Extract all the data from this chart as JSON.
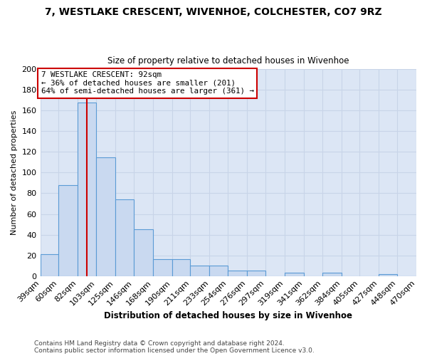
{
  "title": "7, WESTLAKE CRESCENT, WIVENHOE, COLCHESTER, CO7 9RZ",
  "subtitle": "Size of property relative to detached houses in Wivenhoe",
  "xlabel": "Distribution of detached houses by size in Wivenhoe",
  "ylabel": "Number of detached properties",
  "bar_edges": [
    39,
    60,
    82,
    103,
    125,
    146,
    168,
    190,
    211,
    233,
    254,
    276,
    297,
    319,
    341,
    362,
    384,
    405,
    427,
    448,
    470
  ],
  "bar_heights": [
    21,
    88,
    168,
    115,
    74,
    45,
    16,
    16,
    10,
    10,
    5,
    5,
    0,
    3,
    0,
    3,
    0,
    0,
    2,
    0
  ],
  "bar_color": "#c9d9f0",
  "bar_edge_color": "#5b9bd5",
  "property_value": 92,
  "red_line_color": "#cc0000",
  "annotation_line1": "7 WESTLAKE CRESCENT: 92sqm",
  "annotation_line2": "← 36% of detached houses are smaller (201)",
  "annotation_line3": "64% of semi-detached houses are larger (361) →",
  "annotation_box_color": "#ffffff",
  "annotation_box_edge": "#cc0000",
  "ylim": [
    0,
    200
  ],
  "yticks": [
    0,
    20,
    40,
    60,
    80,
    100,
    120,
    140,
    160,
    180,
    200
  ],
  "grid_color": "#c8d4e8",
  "plot_bg_color": "#dce6f5",
  "fig_bg_color": "#ffffff",
  "footer1": "Contains HM Land Registry data © Crown copyright and database right 2024.",
  "footer2": "Contains public sector information licensed under the Open Government Licence v3.0.",
  "tick_labels": [
    "39sqm",
    "60sqm",
    "82sqm",
    "103sqm",
    "125sqm",
    "146sqm",
    "168sqm",
    "190sqm",
    "211sqm",
    "233sqm",
    "254sqm",
    "276sqm",
    "297sqm",
    "319sqm",
    "341sqm",
    "362sqm",
    "384sqm",
    "405sqm",
    "427sqm",
    "448sqm",
    "470sqm"
  ]
}
